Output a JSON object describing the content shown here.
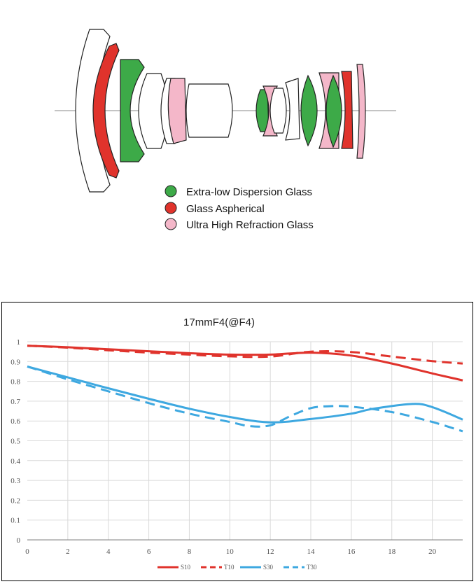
{
  "colors": {
    "ed_glass": "#3daa48",
    "aspherical": "#e0332c",
    "uhr_glass": "#f4b7c9",
    "s10": "#e0332c",
    "t10": "#e0332c",
    "s30": "#3ea8e0",
    "t30": "#3ea8e0",
    "axis": "#7f7f7f",
    "grid": "#d9d9d9"
  },
  "lens_legend": [
    {
      "label": "Extra-low Dispersion Glass",
      "color_key": "ed_glass"
    },
    {
      "label": "Glass Aspherical",
      "color_key": "aspherical"
    },
    {
      "label": "Ultra High Refraction Glass",
      "color_key": "uhr_glass"
    }
  ],
  "chart_data": {
    "type": "line",
    "title": "17mmF4(@F4)",
    "xlabel": "",
    "ylabel": "",
    "xlim": [
      0,
      21.5
    ],
    "ylim": [
      0,
      1
    ],
    "x_ticks": [
      "0",
      "2",
      "4",
      "6",
      "8",
      "10",
      "12",
      "14",
      "16",
      "18",
      "20"
    ],
    "y_ticks": [
      "0",
      "0.1",
      "0.2",
      "0.3",
      "0.4",
      "0.5",
      "0.6",
      "0.7",
      "0.8",
      "0.9",
      "1"
    ],
    "grid": true,
    "legend_position": "bottom",
    "series": [
      {
        "name": "S10",
        "style": "solid",
        "color_key": "s10",
        "x": [
          0,
          2,
          4,
          6,
          8,
          10,
          12,
          14,
          16,
          18,
          20,
          21.5
        ],
        "y": [
          0.98,
          0.972,
          0.962,
          0.952,
          0.942,
          0.935,
          0.935,
          0.945,
          0.93,
          0.89,
          0.84,
          0.805
        ]
      },
      {
        "name": "T10",
        "style": "dashed",
        "color_key": "t10",
        "x": [
          0,
          2,
          4,
          6,
          8,
          10,
          12,
          14,
          16,
          18,
          20,
          21.5
        ],
        "y": [
          0.98,
          0.97,
          0.957,
          0.945,
          0.935,
          0.926,
          0.925,
          0.95,
          0.948,
          0.925,
          0.902,
          0.89
        ]
      },
      {
        "name": "S30",
        "style": "solid",
        "color_key": "s30",
        "x": [
          0,
          2,
          4,
          6,
          8,
          10,
          12,
          14,
          16,
          17,
          19,
          20,
          21.5
        ],
        "y": [
          0.875,
          0.82,
          0.765,
          0.712,
          0.662,
          0.62,
          0.593,
          0.61,
          0.637,
          0.66,
          0.686,
          0.67,
          0.607
        ]
      },
      {
        "name": "T30",
        "style": "dashed",
        "color_key": "t30",
        "x": [
          0,
          2,
          4,
          6,
          8,
          10,
          11,
          12,
          13,
          14,
          15,
          16,
          18,
          20,
          21.5
        ],
        "y": [
          0.875,
          0.81,
          0.75,
          0.69,
          0.637,
          0.595,
          0.574,
          0.578,
          0.625,
          0.665,
          0.675,
          0.672,
          0.645,
          0.595,
          0.548
        ]
      }
    ]
  }
}
